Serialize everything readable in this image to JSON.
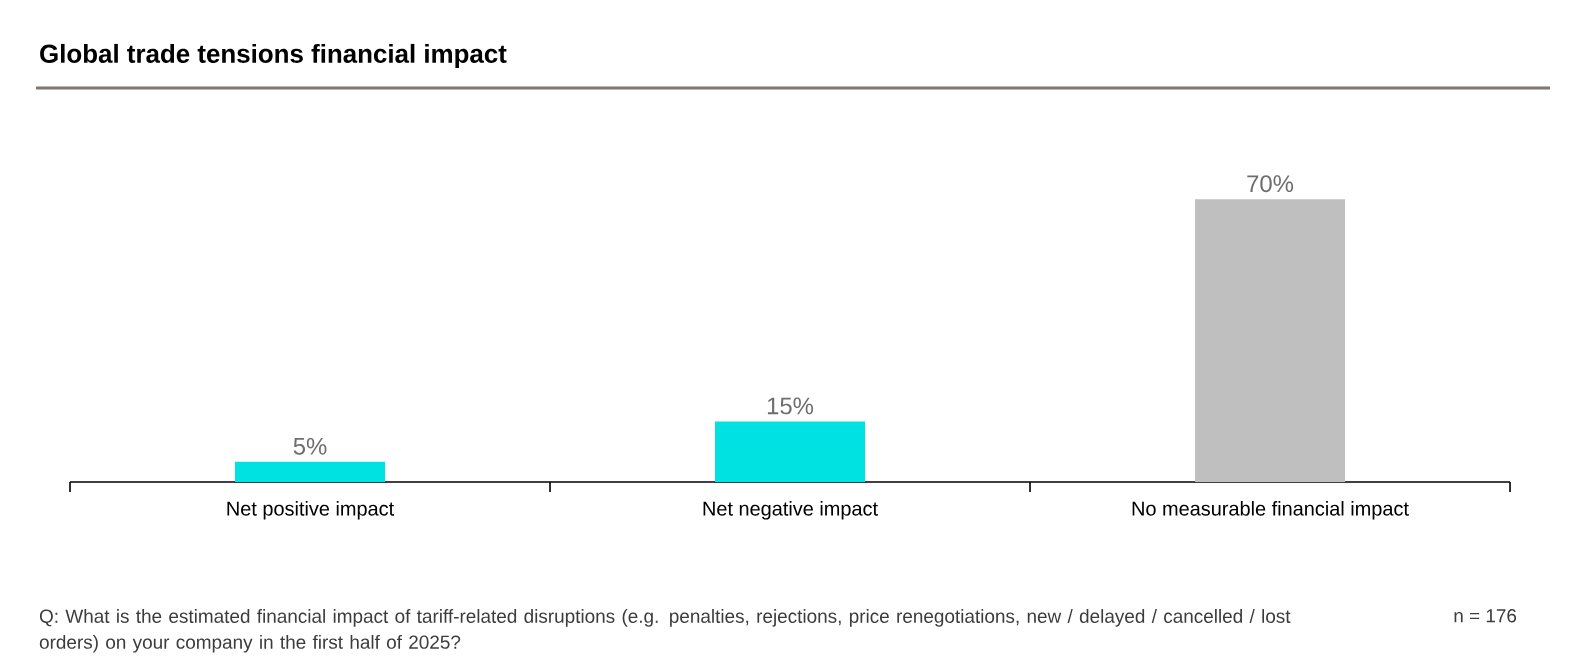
{
  "chart_data": {
    "type": "bar",
    "title": "Global trade tensions financial impact",
    "categories": [
      "Net positive impact",
      "Net negative impact",
      "No measurable financial impact"
    ],
    "values": [
      5,
      15,
      70
    ],
    "colors": [
      "#00e1e1",
      "#00e1e1",
      "#bfbfbf"
    ],
    "value_labels": [
      "5%",
      "15%",
      "70%"
    ],
    "annotations": [
      "Q: What is the estimated financial impact of tariff-related disruptions (e.g. penalties, rejections, price renegotiations, new / delayed / cancelled / lost orders) on your company in the first half of 2025?",
      "n = 176"
    ]
  }
}
